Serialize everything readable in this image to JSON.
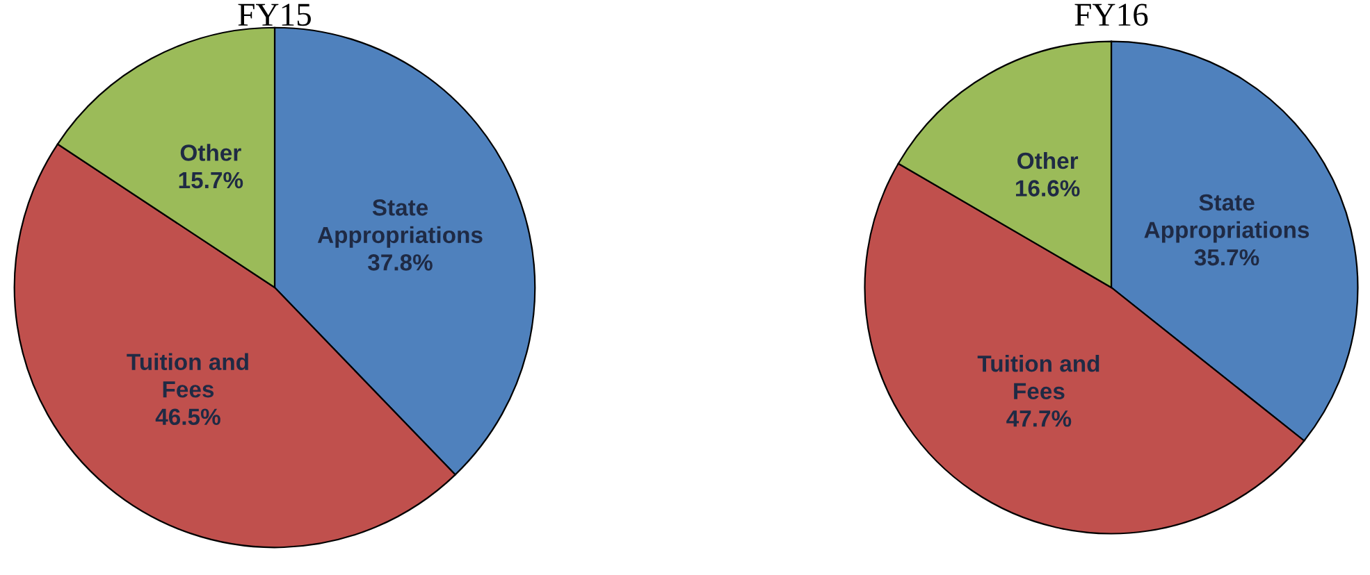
{
  "chart_data": [
    {
      "type": "pie",
      "title": "FY15",
      "categories": [
        "State\nAppropriations",
        "Tuition and\nFees",
        "Other"
      ],
      "values": [
        37.8,
        46.5,
        15.7
      ],
      "value_labels": [
        "37.8%",
        "46.5%",
        "15.7%"
      ],
      "colors": [
        "#4f81bd",
        "#c0504d",
        "#9bbb59"
      ]
    },
    {
      "type": "pie",
      "title": "FY16",
      "categories": [
        "State\nAppropriations",
        "Tuition and\nFees",
        "Other"
      ],
      "values": [
        35.7,
        47.7,
        16.6
      ],
      "value_labels": [
        "35.7%",
        "47.7%",
        "16.6%"
      ],
      "colors": [
        "#4f81bd",
        "#c0504d",
        "#9bbb59"
      ]
    }
  ]
}
